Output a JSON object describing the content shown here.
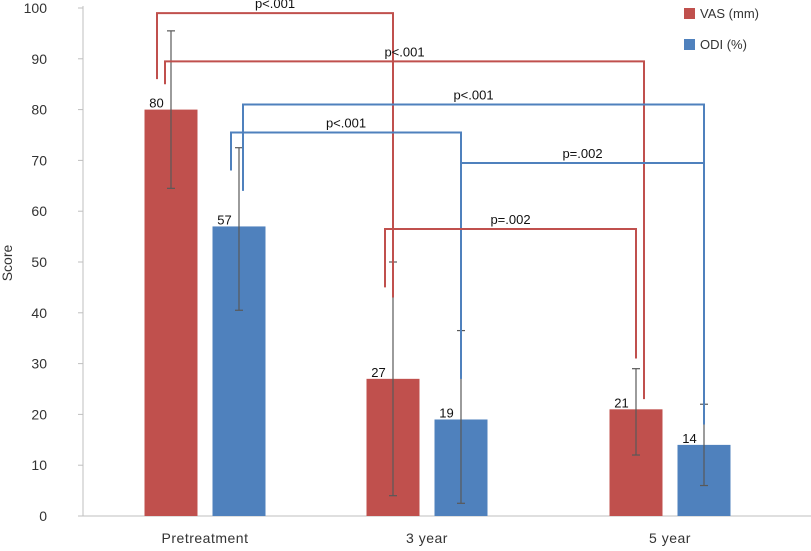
{
  "chart_data": {
    "type": "bar",
    "ylabel": "Score",
    "xlabel": "",
    "ylim": [
      0,
      100
    ],
    "y_ticks": [
      0,
      10,
      20,
      30,
      40,
      50,
      60,
      70,
      80,
      90,
      100
    ],
    "categories": [
      "Pretreatment",
      "3 year",
      "5 year"
    ],
    "series": [
      {
        "name": "VAS (mm)",
        "color": "#c0504d",
        "values": [
          80,
          27,
          21
        ],
        "error_low": [
          64.5,
          4,
          12
        ],
        "error_high": [
          95.5,
          50,
          29
        ]
      },
      {
        "name": "ODI (%)",
        "color": "#4f81bd",
        "values": [
          57,
          19,
          14
        ],
        "error_low": [
          40.5,
          2.5,
          6
        ],
        "error_high": [
          72.5,
          36.5,
          22
        ]
      }
    ],
    "data_labels": [
      "80",
      "57",
      "27",
      "19",
      "21",
      "14"
    ],
    "legend_position": "top-right",
    "grid": false,
    "annotations": [
      {
        "label": "p<.001",
        "series": 0,
        "from": 0,
        "to": 1,
        "level": 99
      },
      {
        "label": "p<.001",
        "series": 0,
        "from": 0,
        "to": 2,
        "level": 89.5
      },
      {
        "label": "p<.001",
        "series": 1,
        "from": 0,
        "to": 2,
        "level": 81
      },
      {
        "label": "p<.001",
        "series": 1,
        "from": 0,
        "to": 1,
        "level": 75.5
      },
      {
        "label": "p=.002",
        "series": 1,
        "from": 1,
        "to": 2,
        "level": 69.5
      },
      {
        "label": "p=.002",
        "series": 0,
        "from": 1,
        "to": 2,
        "level": 56.5
      }
    ]
  }
}
